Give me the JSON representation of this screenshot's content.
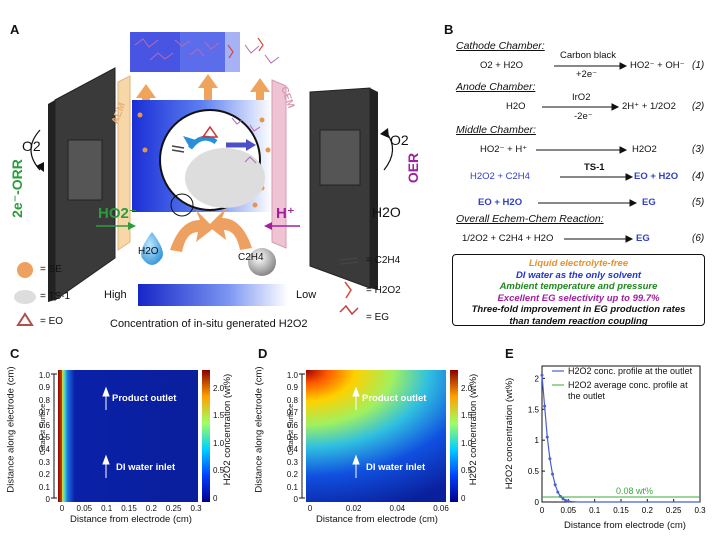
{
  "panels": {
    "a": "A",
    "b": "B",
    "c": "C",
    "d": "D",
    "e": "E"
  },
  "panel_a": {
    "o2_left": "O2",
    "orr": "2e⁻-ORR",
    "o2_right": "O2",
    "oer": "OER",
    "h2o_right": "H2O",
    "aem": "AEM",
    "cem": "CEM",
    "ho2": "HO2⁻",
    "hplus": "H⁺",
    "h2o_drop": "H2O",
    "c2h4_ball": "C2H4",
    "legend": {
      "se": "= SE",
      "ts1": "= TS-1",
      "eo": "= EO",
      "c2h4": "= C2H4",
      "h2o2": "= H2O2",
      "eg": "= EG"
    },
    "scale_high": "High",
    "scale_low": "Low",
    "caption": "Concentration of in-situ generated H2O2"
  },
  "panel_b": {
    "cathode": {
      "header": "Cathode Chamber:",
      "lhs": "O2 + H2O",
      "top": "Carbon black",
      "bottom": "+2e⁻",
      "rhs": "HO2⁻ + OH⁻",
      "num": "(1)"
    },
    "anode": {
      "header": "Anode Chamber:",
      "lhs": "H2O",
      "top": "IrO2",
      "bottom": "-2e⁻",
      "rhs": "2H⁺ + 1/2O2",
      "num": "(2)"
    },
    "middle": {
      "header": "Middle Chamber:",
      "eq3": {
        "lhs": "HO2⁻ + H⁺",
        "rhs": "H2O2",
        "num": "(3)"
      },
      "eq4": {
        "lhs": "H2O2 + C2H4",
        "top": "TS-1",
        "rhs": "EO + H2O",
        "num": "(4)"
      },
      "eq5": {
        "lhs": "EO + H2O",
        "rhs": "EG",
        "num": "(5)"
      }
    },
    "overall": {
      "header": "Overall Echem-Chem Reaction:",
      "lhs": "1/2O2 + C2H4 + H2O",
      "rhs": "EG",
      "num": "(6)"
    },
    "summary": [
      "Liquid electrolyte-free",
      "DI water as the only solvent",
      "Ambient temperature and pressure",
      "Excellent EG selectivity up to 99.7%",
      "Three-fold improvement in EG production rates",
      "than tandem reaction coupling"
    ],
    "summary_colors": [
      "#e8912c",
      "#2233cc",
      "#1e8a1e",
      "#a020a0",
      "#111111",
      "#111111"
    ]
  },
  "panel_c": {
    "ylabel": "Distance along electrode (cm)",
    "xlabel": "Distance from electrode (cm)",
    "cbar_label": "H2O2 concentration (wt%)",
    "xticks": [
      "0",
      "0.05",
      "0.1",
      "0.15",
      "0.2",
      "0.25",
      "0.3"
    ],
    "yticks": [
      "0",
      "0.1",
      "0.2",
      "0.3",
      "0.4",
      "0.5",
      "0.6",
      "0.7",
      "0.8",
      "0.9",
      "1.0"
    ],
    "cbar_ticks": [
      "0",
      "0.5",
      "1.0",
      "1.5",
      "2.0"
    ],
    "product": "Product outlet",
    "inlet": "DI water inlet",
    "surface": "Catalyst Surface"
  },
  "panel_d": {
    "ylabel": "Distance along electrode (cm)",
    "xlabel": "Distance from electrode (cm)",
    "cbar_label": "H2O2 concentration (wt%)",
    "xticks": [
      "0",
      "0.02",
      "0.04",
      "0.06"
    ],
    "yticks": [
      "0",
      "0.1",
      "0.2",
      "0.3",
      "0.4",
      "0.5",
      "0.6",
      "0.7",
      "0.8",
      "0.9",
      "1.0"
    ],
    "cbar_ticks": [
      "0",
      "0.5",
      "1.0",
      "1.5",
      "2.0"
    ],
    "product": "Product outlet",
    "inlet": "DI water inlet",
    "surface": "Catalyst Surface"
  },
  "chart_data": [
    {
      "type": "line",
      "title": "",
      "xlabel": "Distance from electrode (cm)",
      "ylabel": "H2O2 concentration (wt%)",
      "xlim": [
        0,
        0.3
      ],
      "ylim": [
        0,
        2.2
      ],
      "xticks": [
        "0",
        "0.05",
        "0.1",
        "0.15",
        "0.2",
        "0.25",
        "0.3"
      ],
      "yticks": [
        "0",
        "0.5",
        "1",
        "1.5",
        "2"
      ],
      "series": [
        {
          "name": "H2O2 conc. profile at the outlet",
          "x": [
            0,
            0.005,
            0.01,
            0.015,
            0.02,
            0.025,
            0.03,
            0.035,
            0.04,
            0.045,
            0.05,
            0.06,
            0.07,
            0.1,
            0.15,
            0.2,
            0.25,
            0.3
          ],
          "values": [
            2.05,
            1.55,
            1.05,
            0.7,
            0.45,
            0.28,
            0.16,
            0.09,
            0.05,
            0.025,
            0.01,
            0.005,
            0.0,
            0.0,
            0.0,
            0.0,
            0.0,
            0.0
          ]
        },
        {
          "name": "H2O2 average conc. profile at the outlet",
          "x": [
            0,
            0.3
          ],
          "values": [
            0.08,
            0.08
          ]
        }
      ],
      "annotation": "0.08 wt%"
    }
  ]
}
